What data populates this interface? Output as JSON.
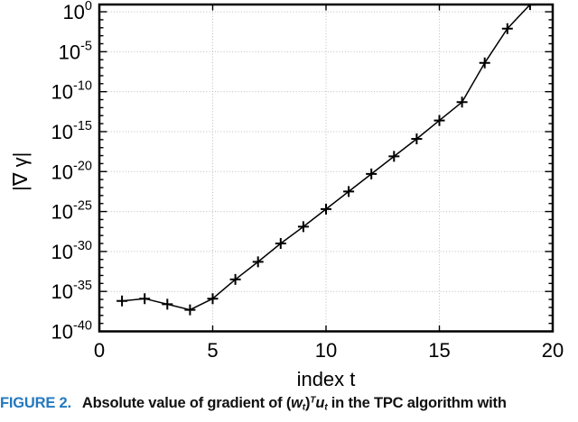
{
  "figure": {
    "caption_tag": "FIGURE 2.",
    "caption_tag_color": "#2478be",
    "caption_parts": [
      {
        "t": "Absolute value of gradient of ("
      },
      {
        "t": "w",
        "i": 1
      },
      {
        "t": "t",
        "s": "sub",
        "i": 1
      },
      {
        "t": ")"
      },
      {
        "t": "T",
        "s": "sup",
        "i": 1
      },
      {
        "t": "u",
        "i": 1
      },
      {
        "t": "t",
        "s": "sub",
        "i": 1
      },
      {
        "t": " in the TPC algorithm with"
      }
    ]
  },
  "chart_data": {
    "type": "line",
    "title": "",
    "xlabel": "index t",
    "ylabel": "|∇ γ|",
    "y_scale": "log10",
    "xlim": [
      0,
      20
    ],
    "ylim_log10": [
      -40,
      0.91
    ],
    "x_ticks": [
      0,
      5,
      10,
      15,
      20
    ],
    "y_tick_exponents": [
      0,
      -5,
      -10,
      -15,
      -20,
      -25,
      -30,
      -35,
      -40
    ],
    "grid": true,
    "legend": "none",
    "series": [
      {
        "name": "|∇ γ|",
        "marker": "plus",
        "color": "#000000",
        "x": [
          1,
          2,
          3,
          4,
          5,
          6,
          7,
          8,
          9,
          10,
          11,
          12,
          13,
          14,
          15,
          16,
          17,
          18,
          19,
          20
        ],
        "log10_y": [
          -36.2,
          -35.9,
          -36.6,
          -37.3,
          -35.9,
          -33.5,
          -31.3,
          -29.0,
          -26.9,
          -24.7,
          -22.5,
          -20.3,
          -18.1,
          -15.9,
          -13.6,
          -11.3,
          -6.4,
          -2.1,
          0.9,
          1.2
        ],
        "y_approx": [
          "6e-37",
          "1.3e-36",
          "2.5e-37",
          "5e-38",
          "1.3e-36",
          "3e-34",
          "5e-32",
          "1e-29",
          "1.3e-27",
          "2e-25",
          "3e-23",
          "5e-21",
          "8e-19",
          "1.3e-16",
          "2.5e-14",
          "5e-12",
          "4e-7",
          "8e-3",
          "8",
          "16"
        ]
      }
    ],
    "colors": {
      "axis": "#000000",
      "grid": "#bcbcbc",
      "text": "#000000"
    }
  }
}
